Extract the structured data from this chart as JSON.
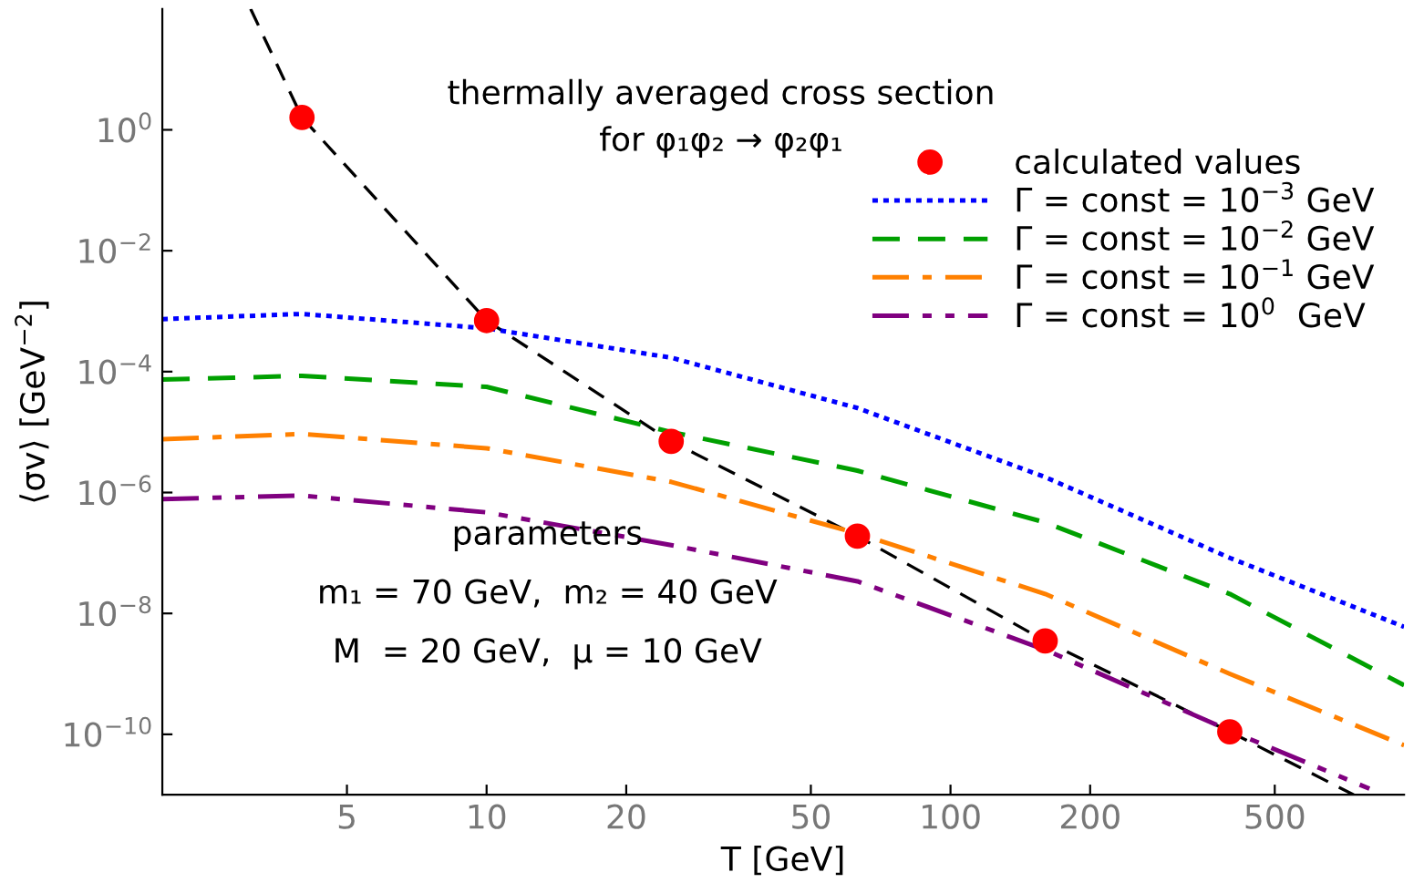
{
  "chart_data": {
    "type": "line",
    "title": "thermally averaged cross section\nfor φ₁φ₂ → φ₂φ₁",
    "xlabel": "T [GeV]",
    "ylabel": "⟨σv⟩ [GeV$^{−2}$]",
    "log": "xy",
    "xlim": [
      2,
      950
    ],
    "ylim": [
      1e-11,
      100
    ],
    "xticks": [
      5,
      10,
      20,
      50,
      100,
      200,
      500
    ],
    "yticks": [
      {
        "value": 1,
        "label": "10$^{0}$"
      },
      {
        "value": 0.01,
        "label": "10$^{−2}$"
      },
      {
        "value": 0.0001,
        "label": "10$^{−4}$"
      },
      {
        "value": 1e-06,
        "label": "10$^{−6}$"
      },
      {
        "value": 1e-08,
        "label": "10$^{−8}$"
      },
      {
        "value": 1e-10,
        "label": "10$^{−10}$"
      }
    ],
    "grid": false,
    "legend": "top right",
    "annotations": [
      "parameters",
      "m₁ = 70 GeV,  m₂ = 40 GeV",
      "M  = 20 GeV,  μ = 10 GeV"
    ],
    "series": [
      {
        "color": "#000000",
        "line_style": "dashed",
        "x": [
          3.1,
          4,
          10,
          25,
          63,
          160,
          400,
          740
        ],
        "values": [
          100,
          1.6,
          0.0007,
          7e-06,
          1.9e-07,
          3.5e-09,
          1.1e-10,
          1e-11
        ]
      },
      {
        "type": "scatter",
        "name": "calculated values",
        "color": "#ff0000",
        "marker": "circle",
        "x": [
          4,
          10,
          25,
          63,
          160,
          400
        ],
        "values": [
          1.6,
          0.0007,
          7e-06,
          1.9e-07,
          3.5e-09,
          1.1e-10
        ]
      },
      {
        "name": "Γ = const = 10$^{−3}$ GeV",
        "color": "#0000ff",
        "line_style": "dotted",
        "x": [
          2,
          4,
          10,
          25,
          63,
          160,
          400,
          950
        ],
        "values": [
          0.00074,
          0.0009,
          0.00052,
          0.00017,
          2.5e-05,
          1.8e-06,
          8.3e-08,
          6e-09
        ]
      },
      {
        "name": "Γ = const = 10$^{−2}$ GeV",
        "color": "#00a000",
        "line_style": "dashed",
        "x": [
          2,
          4,
          10,
          25,
          63,
          160,
          400,
          950
        ],
        "values": [
          7.4e-05,
          8.5e-05,
          5.6e-05,
          1e-05,
          2.3e-06,
          3.2e-07,
          2.1e-08,
          6.5e-10
        ]
      },
      {
        "name": "Γ = const = 10$^{−1}$ GeV",
        "color": "#ff8000",
        "line_style": "dashdot",
        "x": [
          2,
          4,
          10,
          25,
          63,
          160,
          400,
          950
        ],
        "values": [
          7.6e-06,
          9.3e-06,
          5.4e-06,
          1.5e-06,
          2.1e-07,
          2.1e-08,
          1e-09,
          6.6e-11
        ]
      },
      {
        "name": "Γ = const = 10$^{0}$  GeV",
        "color": "#800080",
        "line_style": "dashdotdot",
        "x": [
          2,
          4,
          10,
          25,
          63,
          160,
          400,
          800
        ],
        "values": [
          7.8e-07,
          8.9e-07,
          4.7e-07,
          1.35e-07,
          3.4e-08,
          2.5e-09,
          1.15e-10,
          1.26e-11
        ]
      }
    ]
  }
}
